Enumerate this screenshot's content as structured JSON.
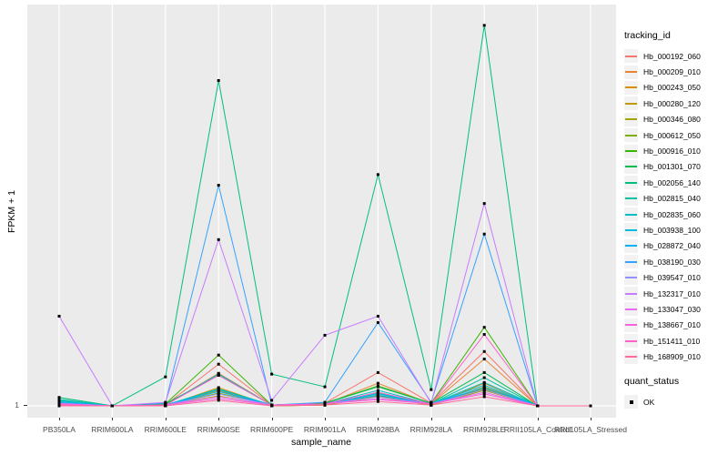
{
  "figure": {
    "background": "#FFFFFF",
    "panel_background": "#EBEBEB",
    "gridline_color": "#FFFFFF",
    "axis_text_color": "#4D4D4D",
    "tick_mark_color": "#333333"
  },
  "legend": {
    "tracking_title": "tracking_id",
    "quant_title": "quant_status",
    "quant_items": [
      {
        "label": "OK",
        "marker": "black-square"
      }
    ],
    "key_fill": "#F2F2F2"
  },
  "chart_data": {
    "type": "line",
    "title": "",
    "xlabel": "sample_name",
    "ylabel": "FPKM + 1",
    "legend_position": "right",
    "grid": "white vertical gridline at each category; single horizontal white gridline at y tick 1",
    "x_categories": [
      "PB350LA",
      "RRIM600LA",
      "RRIM600LE",
      "RRIM600SE",
      "RRIM600PE",
      "RRIM901LA",
      "RRIM928BA",
      "RRIM928LA",
      "RRIM928LE",
      "RRII105LA_Control",
      "RRII105LA_Stressed"
    ],
    "y_axis": {
      "tick_labels": [
        "1"
      ],
      "baseline_value": 1,
      "scale_note": "only the y=1 tick is labeled; series values below are estimated fractions of full panel height above the y=1 baseline (0 = at baseline 1, 1 = panel top)"
    },
    "point_marker": {
      "shape": "square",
      "color": "#000000",
      "legend_label": "OK"
    },
    "series": [
      {
        "name": "Hb_000192_060",
        "color": "#F8766D",
        "values": [
          0.007,
          0,
          0.002,
          0.105,
          0.002,
          0.007,
          0.084,
          0.007,
          0.137,
          0,
          0
        ]
      },
      {
        "name": "Hb_000209_010",
        "color": "#EA8331",
        "values": [
          0.005,
          0,
          0.002,
          0.082,
          0.002,
          0.005,
          0.057,
          0.005,
          0.118,
          0,
          0
        ]
      },
      {
        "name": "Hb_000243_050",
        "color": "#D89000",
        "values": [
          0.002,
          0,
          0,
          0.046,
          0,
          0.002,
          0.034,
          0.002,
          0.057,
          0,
          0
        ]
      },
      {
        "name": "Hb_000280_120",
        "color": "#C09B00",
        "values": [
          0.002,
          0,
          0,
          0.039,
          0,
          0.002,
          0.027,
          0.002,
          0.048,
          0,
          0
        ]
      },
      {
        "name": "Hb_000346_080",
        "color": "#A3A500",
        "values": [
          0.009,
          0,
          0.002,
          0.025,
          0,
          0.002,
          0.023,
          0.002,
          0.039,
          0,
          0
        ]
      },
      {
        "name": "Hb_000612_050",
        "color": "#7CAE00",
        "values": [
          0.011,
          0,
          0.002,
          0.032,
          0.002,
          0.005,
          0.025,
          0.005,
          0.043,
          0,
          0
        ]
      },
      {
        "name": "Hb_000916_010",
        "color": "#39B600",
        "values": [
          0.014,
          0,
          0.005,
          0.128,
          0.002,
          0.007,
          0.05,
          0.007,
          0.198,
          0,
          0
        ]
      },
      {
        "name": "Hb_001301_070",
        "color": "#00BB4E",
        "values": [
          0.021,
          0,
          0.005,
          0.077,
          0.002,
          0.007,
          0.048,
          0.007,
          0.084,
          0,
          0
        ]
      },
      {
        "name": "Hb_002056_140",
        "color": "#00BF7D",
        "values": [
          0.021,
          0,
          0.073,
          0.82,
          0.08,
          0.048,
          0.583,
          0.041,
          0.959,
          0,
          0
        ]
      },
      {
        "name": "Hb_002815_040",
        "color": "#00C1A3",
        "values": [
          0.016,
          0,
          0.002,
          0.043,
          0.002,
          0.005,
          0.03,
          0.005,
          0.071,
          0,
          0
        ]
      },
      {
        "name": "Hb_002835_060",
        "color": "#00BFC4",
        "values": [
          0.014,
          0,
          0.002,
          0.08,
          0.002,
          0.005,
          0.039,
          0.005,
          0.059,
          0,
          0
        ]
      },
      {
        "name": "Hb_003938_100",
        "color": "#00BAE0",
        "values": [
          0.011,
          0,
          0.002,
          0.041,
          0.002,
          0.005,
          0.032,
          0.005,
          0.052,
          0,
          0
        ]
      },
      {
        "name": "Hb_028872_040",
        "color": "#00B0F6",
        "values": [
          0.009,
          0,
          0.002,
          0.036,
          0.002,
          0.005,
          0.027,
          0.005,
          0.046,
          0,
          0
        ]
      },
      {
        "name": "Hb_038190_030",
        "color": "#35A2FF",
        "values": [
          0.007,
          0,
          0.007,
          0.556,
          0.002,
          0.009,
          0.21,
          0.009,
          0.433,
          0,
          0
        ]
      },
      {
        "name": "Hb_039547_010",
        "color": "#9590FF",
        "values": [
          0.007,
          0,
          0.002,
          0.03,
          0.002,
          0.005,
          0.023,
          0.005,
          0.041,
          0,
          0
        ]
      },
      {
        "name": "Hb_132317_010",
        "color": "#C77CFF",
        "values": [
          0.226,
          0,
          0.009,
          0.419,
          0.014,
          0.178,
          0.226,
          0.007,
          0.51,
          0,
          0
        ]
      },
      {
        "name": "Hb_133047_030",
        "color": "#E76BF3",
        "values": [
          0.005,
          0,
          0.002,
          0.023,
          0.002,
          0.005,
          0.018,
          0.005,
          0.034,
          0,
          0
        ]
      },
      {
        "name": "Hb_138667_010",
        "color": "#FA62DB",
        "values": [
          0.005,
          0,
          0.002,
          0.018,
          0.002,
          0.005,
          0.016,
          0.005,
          0.03,
          0,
          0
        ]
      },
      {
        "name": "Hb_151411_010",
        "color": "#FF61C9",
        "values": [
          0.002,
          0,
          0.002,
          0.077,
          0.002,
          0.005,
          0.034,
          0.005,
          0.18,
          0,
          0
        ]
      },
      {
        "name": "Hb_168909_010",
        "color": "#FF6A98",
        "values": [
          0,
          0,
          0,
          0.014,
          0,
          0.002,
          0.011,
          0.002,
          0.023,
          0,
          0
        ]
      }
    ]
  }
}
